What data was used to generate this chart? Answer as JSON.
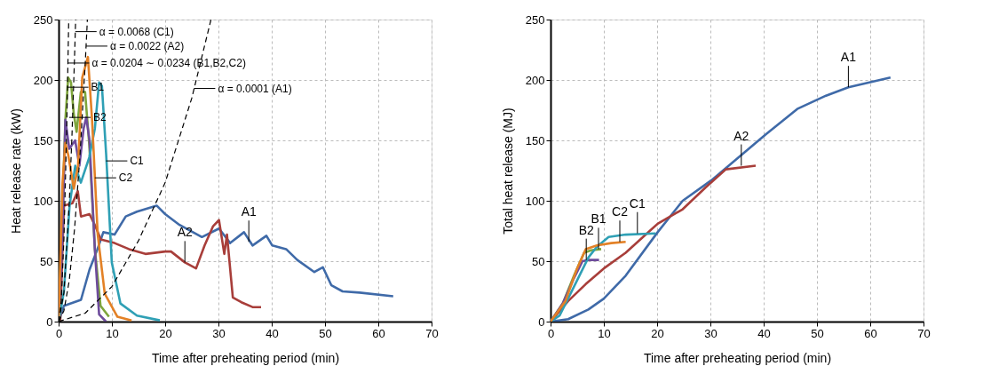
{
  "chart_data": [
    {
      "type": "line",
      "xlabel": "Time after preheating period (min)",
      "ylabel": "Heat release rate (kW)",
      "xlim": [
        0,
        70
      ],
      "ylim": [
        0,
        250
      ],
      "xticks": [
        0,
        10,
        20,
        30,
        40,
        50,
        60,
        70
      ],
      "yticks": [
        0,
        50,
        100,
        150,
        200,
        250
      ],
      "grid": true,
      "series": [
        {
          "color": "#3f6aa8",
          "x": [
            0,
            1,
            4.2,
            5.8,
            7.3,
            8.4,
            10.5,
            12.6,
            14.7,
            18.4,
            20,
            22.7,
            26.9,
            30.1,
            32.2,
            34.8,
            36.4,
            39,
            40.1,
            42.7,
            44.8,
            48,
            49.6,
            51.2,
            53.3,
            56.5,
            62.8
          ],
          "values": [
            0,
            13,
            18,
            43,
            60,
            74,
            72,
            87,
            91,
            96,
            89,
            80,
            70,
            77,
            65,
            74,
            63,
            71,
            63,
            60,
            51,
            41,
            45,
            30,
            25,
            24,
            21
          ]
        },
        {
          "color": "#a83e3a",
          "x": [
            0.3,
            1,
            2.6,
            3.6,
            4.2,
            5.8,
            6.9,
            7.9,
            10.5,
            13.2,
            16.3,
            20,
            21.1,
            23.7,
            25.8,
            27.4,
            29,
            30.1,
            31.1,
            31.6,
            32.7,
            34.3,
            36.4,
            38
          ],
          "values": [
            0,
            96,
            98,
            108,
            87,
            89,
            79,
            68,
            65,
            60,
            56,
            58,
            58,
            49,
            44,
            63,
            79,
            84,
            56,
            72,
            20,
            16,
            12,
            12
          ]
        },
        {
          "color": "#7ea53c",
          "x": [
            0,
            0.74,
            1.27,
            1.8,
            2.32,
            2.85,
            3.38,
            4.17,
            4.97,
            5.76,
            6.81,
            7.87,
            9.45
          ],
          "values": [
            0,
            96,
            167,
            202,
            198,
            172,
            157,
            190,
            190,
            146,
            60,
            13,
            4
          ]
        },
        {
          "color": "#6e4c9c",
          "x": [
            0,
            0.74,
            1.27,
            2.0,
            3.1,
            3.9,
            4.7,
            5.2,
            5.8,
            6.8,
            7.6,
            8.9
          ],
          "values": [
            0,
            72,
            167,
            143,
            150,
            129,
            160,
            169,
            150,
            60,
            6,
            0
          ]
        },
        {
          "color": "#2fa0b5",
          "x": [
            0,
            1.0,
            2.06,
            3.12,
            4.17,
            5.76,
            6.81,
            7.6,
            8.13,
            8.93,
            9.98,
            11.6,
            14.7,
            19.0
          ],
          "values": [
            0,
            25,
            96,
            129,
            115,
            136,
            160,
            198,
            195,
            138,
            49,
            15,
            5,
            1
          ]
        },
        {
          "color": "#e38126",
          "x": [
            0,
            0.74,
            1.27,
            1.8,
            2.85,
            3.65,
            4.44,
            5.5,
            6.28,
            7.34,
            8.66,
            11.04,
            13.7
          ],
          "values": [
            0,
            115,
            148,
            138,
            110,
            129,
            202,
            219,
            167,
            72,
            23,
            4,
            1
          ]
        },
        {
          "color": "#000000",
          "line_style": "dashed",
          "x": [
            0,
            0.5,
            1,
            1.5,
            1.9
          ],
          "values": [
            0,
            17,
            69,
            155,
            250
          ]
        },
        {
          "color": "#000000",
          "line_style": "dashed",
          "x": [
            0,
            1,
            2,
            2.5,
            3,
            3.2
          ],
          "values": [
            0,
            24,
            98,
            153,
            220,
            250
          ]
        },
        {
          "color": "#000000",
          "line_style": "dashed",
          "x": [
            0,
            1,
            2,
            3,
            4,
            5,
            5.4
          ],
          "values": [
            0,
            9,
            34,
            77,
            137,
            214,
            250
          ]
        },
        {
          "color": "#000000",
          "line_style": "dashed",
          "x": [
            0,
            5,
            10,
            15,
            20,
            25,
            28.6
          ],
          "values": [
            0,
            7,
            29,
            67,
            115,
            185,
            250
          ]
        }
      ],
      "annotations": [
        {
          "text": "α = 0.0068 (C1)",
          "x": 3.13,
          "y": 240
        },
        {
          "text": "α = 0.0022 (A2)",
          "x": 5.16,
          "y": 228
        },
        {
          "text": "α = 0.0204 ∼ 0.0234 (B1,B2,C2)",
          "x": 1.75,
          "y": 214
        },
        {
          "text": "α = 0.0001 (A1)",
          "x": 25.4,
          "y": 193
        },
        {
          "text": "B1",
          "x": 1.6,
          "y": 194
        },
        {
          "text": "B2",
          "x": 2.0,
          "y": 169
        },
        {
          "text": "C1",
          "x": 8.9,
          "y": 133
        },
        {
          "text": "C2",
          "x": 6.8,
          "y": 119
        },
        {
          "text": "A2",
          "x": 23.7,
          "y": 49
        },
        {
          "text": "A1",
          "x": 35.7,
          "y": 66
        }
      ]
    },
    {
      "type": "line",
      "xlabel": "Time after preheating period (min)",
      "ylabel": "Total heat release (MJ)",
      "xlim": [
        0,
        70
      ],
      "ylim": [
        0,
        250
      ],
      "xticks": [
        0,
        10,
        20,
        30,
        40,
        50,
        60,
        70
      ],
      "yticks": [
        0,
        50,
        100,
        150,
        200,
        250
      ],
      "grid": true,
      "series": [
        {
          "color": "#3f6aa8",
          "x": [
            0,
            3.3,
            7.1,
            10,
            14.1,
            20.1,
            24.8,
            30.2,
            32.9,
            40.4,
            46.3,
            51.7,
            55.9,
            63.8
          ],
          "values": [
            0,
            2,
            10,
            19,
            38,
            74,
            100,
            117,
            127,
            155,
            176,
            187,
            194,
            202
          ]
        },
        {
          "color": "#a83e3a",
          "x": [
            0,
            3.3,
            6.6,
            10,
            14.1,
            20.1,
            24.8,
            29.1,
            32.9,
            38.5
          ],
          "values": [
            0,
            17,
            31,
            44,
            57,
            81,
            93,
            111,
            126,
            129
          ]
        },
        {
          "color": "#7ea53c",
          "x": [
            0,
            2.3,
            4.4,
            6.3,
            7.6,
            9.5
          ],
          "values": [
            0,
            15,
            38,
            57,
            59,
            60
          ]
        },
        {
          "color": "#6e4c9c",
          "x": [
            0,
            2.3,
            4.4,
            6.0,
            7.1,
            9.1
          ],
          "values": [
            0,
            15,
            36,
            50,
            51,
            51
          ]
        },
        {
          "color": "#2fa0b5",
          "x": [
            0,
            1.7,
            4.4,
            7.1,
            8.7,
            10.9,
            14.1,
            19.7
          ],
          "values": [
            0,
            5,
            29,
            53,
            62,
            70,
            72,
            73
          ]
        },
        {
          "color": "#e38126",
          "x": [
            0,
            2.8,
            4.9,
            6.6,
            8.7,
            11.4,
            14.1
          ],
          "values": [
            0,
            17,
            43,
            60,
            63,
            65,
            66
          ]
        }
      ],
      "annotations": [
        {
          "text": "A1",
          "x": 55.9,
          "y": 194
        },
        {
          "text": "A2",
          "x": 35.8,
          "y": 129
        },
        {
          "text": "C1",
          "x": 16.3,
          "y": 73
        },
        {
          "text": "C2",
          "x": 13.0,
          "y": 66
        },
        {
          "text": "B1",
          "x": 9.0,
          "y": 60
        },
        {
          "text": "B2",
          "x": 6.7,
          "y": 51
        }
      ]
    }
  ]
}
